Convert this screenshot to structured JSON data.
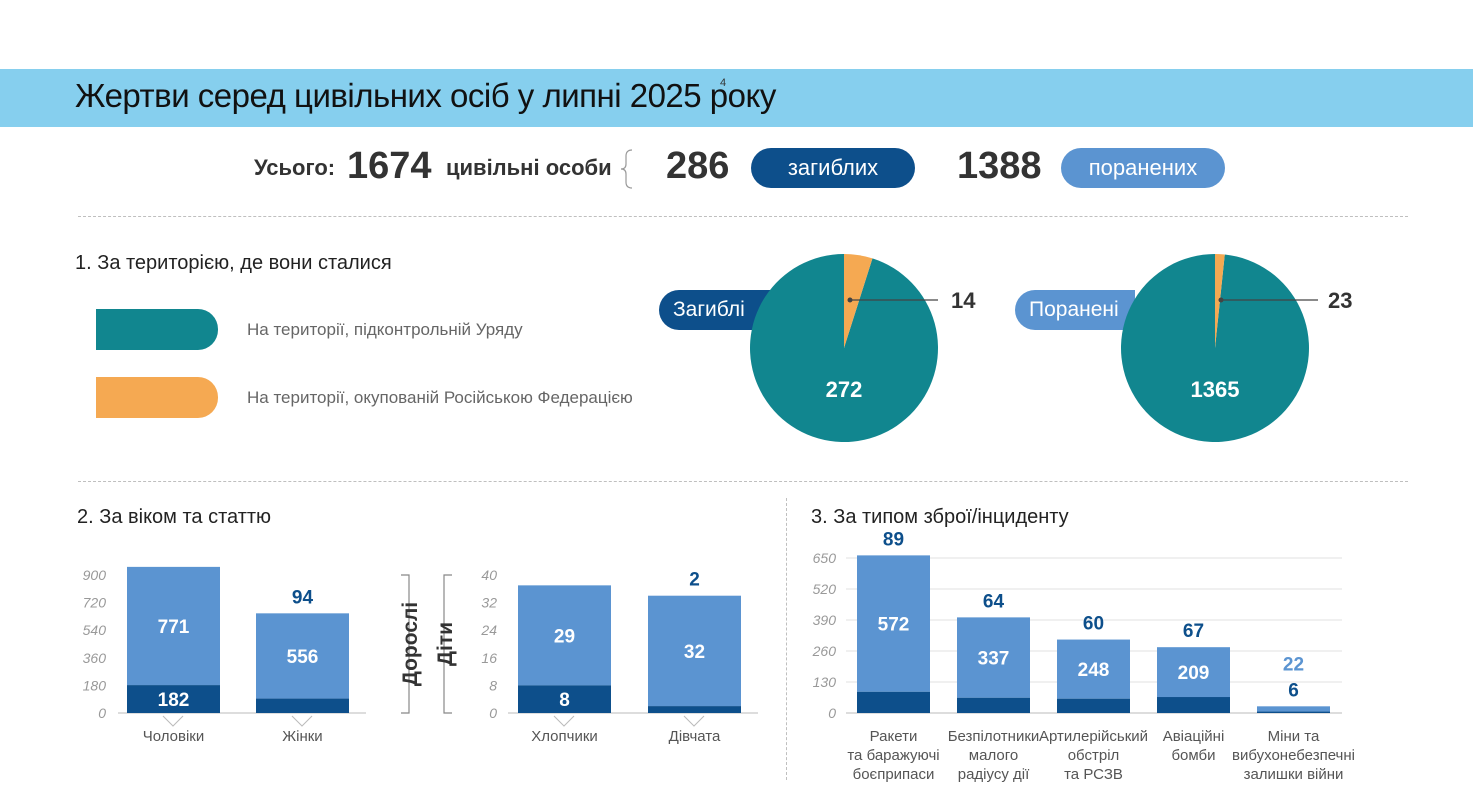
{
  "header": {
    "title": "Жертви серед цивільних осіб у липні 2025 року",
    "footnote": "4"
  },
  "totals": {
    "label": "Усього:",
    "total": "1674",
    "total_suffix": "цивільні особи",
    "killed": "286",
    "killed_label": "загиблих",
    "injured": "1388",
    "injured_label": "поранених"
  },
  "colors": {
    "teal": "#11868f",
    "orange": "#f5a952",
    "dark_blue": "#0d4f8b",
    "light_blue": "#5b94d1",
    "banner": "#86cfee"
  },
  "section1": {
    "title": "1. За територією, де вони сталися",
    "legend": [
      {
        "label": "На території, підконтрольній Уряду",
        "color": "#11868f"
      },
      {
        "label": "На території, окупованій Російською Федерацією",
        "color": "#f5a952"
      }
    ],
    "pie_killed_label": "Загиблі",
    "pie_injured_label": "Поранені"
  },
  "section2": {
    "title": "2. За віком та статтю",
    "adults_label": "Дорослі",
    "children_label": "Діти"
  },
  "section3": {
    "title": "3. За типом зброї/інциденту"
  },
  "chart_data": [
    {
      "type": "pie",
      "name": "Загиблі",
      "slices": [
        {
          "label": "На території, підконтрольній Уряду",
          "value": 272
        },
        {
          "label": "На території, окупованій Російською Федерацією",
          "value": 14
        }
      ]
    },
    {
      "type": "pie",
      "name": "Поранені",
      "slices": [
        {
          "label": "На території, підконтрольній Уряду",
          "value": 1365
        },
        {
          "label": "На території, окупованій Російською Федерацією",
          "value": 23
        }
      ]
    },
    {
      "type": "bar",
      "stacked": true,
      "group": "Дорослі",
      "categories": [
        "Чоловіки",
        "Жінки"
      ],
      "killed": [
        182,
        94
      ],
      "injured": [
        771,
        556
      ],
      "yticks": [
        0,
        180,
        360,
        540,
        720,
        900
      ],
      "ylim": [
        0,
        900
      ]
    },
    {
      "type": "bar",
      "stacked": true,
      "group": "Діти",
      "categories": [
        "Хлопчики",
        "Дівчата"
      ],
      "killed": [
        8,
        2
      ],
      "injured": [
        29,
        32
      ],
      "yticks": [
        0,
        8,
        16,
        24,
        32,
        40
      ],
      "ylim": [
        0,
        40
      ]
    },
    {
      "type": "bar",
      "stacked": true,
      "categories": [
        [
          "Ракети",
          "та баражуючі",
          "боєприпаси"
        ],
        [
          "Безпілотники",
          "малого",
          "радіусу дії"
        ],
        [
          "Артилерійський",
          "обстріл",
          "та РСЗВ"
        ],
        [
          "Авіаційні",
          "бомби"
        ],
        [
          "Міни та",
          "вибухонебезпечні",
          "залишки війни"
        ]
      ],
      "killed": [
        89,
        64,
        60,
        67,
        6
      ],
      "injured": [
        572,
        337,
        248,
        209,
        22
      ],
      "yticks": [
        0,
        130,
        260,
        390,
        520,
        650
      ],
      "ylim": [
        0,
        650
      ],
      "grid": true
    }
  ]
}
